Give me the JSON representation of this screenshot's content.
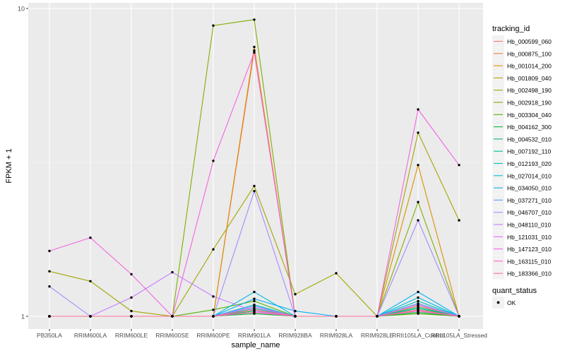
{
  "chart_data": {
    "type": "line",
    "title": "",
    "xlabel": "sample_name",
    "ylabel": "FPKM + 1",
    "y_scale": "log10",
    "ylim": [
      1,
      10
    ],
    "y_ticks": [
      {
        "value": 1,
        "label": "1"
      },
      {
        "value": 10,
        "label": "10"
      }
    ],
    "grid": true,
    "legend_position": "right",
    "categories": [
      "PB350LA",
      "RRIM600LA",
      "RRIM600LE",
      "RRIM600SE",
      "RRIM600PE",
      "RRIM901LA",
      "RRIM928BA",
      "RRIM928LA",
      "RRIM928LE",
      "RRII105LA_Control",
      "RRII105LA_Stressed"
    ],
    "legend_title": "tracking_id",
    "series": [
      {
        "name": "Hb_000599_060",
        "color": "#F8766D",
        "values": [
          1,
          1,
          1,
          1,
          1,
          7.3,
          1,
          1,
          1,
          1.05,
          1
        ]
      },
      {
        "name": "Hb_000875_100",
        "color": "#EE8040",
        "values": [
          1,
          1,
          1,
          1,
          1,
          1.03,
          1,
          1,
          1,
          1.08,
          1
        ]
      },
      {
        "name": "Hb_001014_200",
        "color": "#DD8F00",
        "values": [
          1,
          1,
          1,
          1,
          1,
          7.5,
          1,
          1,
          1,
          3.1,
          1
        ]
      },
      {
        "name": "Hb_001809_040",
        "color": "#C99A00",
        "values": [
          1,
          1,
          1,
          1,
          1,
          1.05,
          1,
          1,
          1,
          1.1,
          1
        ]
      },
      {
        "name": "Hb_002498_190",
        "color": "#A3A500",
        "values": [
          1.4,
          1.3,
          1.04,
          1,
          1.65,
          2.65,
          1.18,
          1.38,
          1,
          3.95,
          2.05
        ]
      },
      {
        "name": "Hb_002918_190",
        "color": "#80AE00",
        "values": [
          1,
          1,
          1,
          1,
          8.8,
          9.2,
          1,
          1,
          1,
          2.35,
          1
        ]
      },
      {
        "name": "Hb_003304_040",
        "color": "#4CB400",
        "values": [
          1,
          1,
          1,
          1,
          1.05,
          1.12,
          1,
          1,
          1,
          1.02,
          1
        ]
      },
      {
        "name": "Hb_004162_300",
        "color": "#00BA38",
        "values": [
          1,
          1,
          1,
          1,
          1,
          1.02,
          1,
          1,
          1,
          1.03,
          1
        ]
      },
      {
        "name": "Hb_004532_010",
        "color": "#00BE6D",
        "values": [
          1,
          1,
          1,
          1,
          1,
          1.04,
          1,
          1,
          1,
          1.06,
          1
        ]
      },
      {
        "name": "Hb_007192_110",
        "color": "#00C097",
        "values": [
          1,
          1,
          1,
          1,
          1,
          1.06,
          1,
          1,
          1,
          1.07,
          1
        ]
      },
      {
        "name": "Hb_012193_020",
        "color": "#00C0BC",
        "values": [
          1,
          1,
          1,
          1,
          1,
          1.09,
          1,
          1,
          1,
          1.12,
          1
        ]
      },
      {
        "name": "Hb_027014_010",
        "color": "#00BCDC",
        "values": [
          1,
          1,
          1,
          1,
          1,
          1.2,
          1,
          1,
          1,
          1.15,
          1
        ]
      },
      {
        "name": "Hb_034050_010",
        "color": "#00B0F6",
        "values": [
          1,
          1,
          1,
          1,
          1,
          1.14,
          1.04,
          1,
          1,
          1.2,
          1
        ]
      },
      {
        "name": "Hb_037271_010",
        "color": "#619CFF",
        "values": [
          1,
          1,
          1,
          1,
          1,
          1.08,
          1,
          1,
          1,
          1.1,
          1
        ]
      },
      {
        "name": "Hb_046707_010",
        "color": "#A58AFF",
        "values": [
          1.25,
          1,
          1,
          1,
          1,
          2.55,
          1,
          1,
          1,
          2.05,
          1
        ]
      },
      {
        "name": "Hb_048110_010",
        "color": "#C77CFF",
        "values": [
          1,
          1,
          1.15,
          1.39,
          1.16,
          1.04,
          1,
          1,
          1,
          1.04,
          1
        ]
      },
      {
        "name": "Hb_121031_010",
        "color": "#E36EF6",
        "values": [
          1,
          1,
          1,
          1,
          1,
          1.07,
          1,
          1,
          1,
          1.09,
          1
        ]
      },
      {
        "name": "Hb_147123_010",
        "color": "#F564E3",
        "values": [
          1.63,
          1.8,
          1.37,
          1,
          3.2,
          7.2,
          1,
          1,
          1,
          4.7,
          3.1
        ]
      },
      {
        "name": "Hb_163115_010",
        "color": "#FF61C3",
        "values": [
          1,
          1,
          1,
          1,
          1,
          1.03,
          1,
          1,
          1,
          1.04,
          1
        ]
      },
      {
        "name": "Hb_183366_010",
        "color": "#FF6C91",
        "values": [
          1,
          1,
          1,
          1,
          1,
          1.05,
          1,
          1,
          1,
          1.05,
          1
        ]
      }
    ],
    "point_legend": {
      "title": "quant_status",
      "label": "OK"
    }
  }
}
